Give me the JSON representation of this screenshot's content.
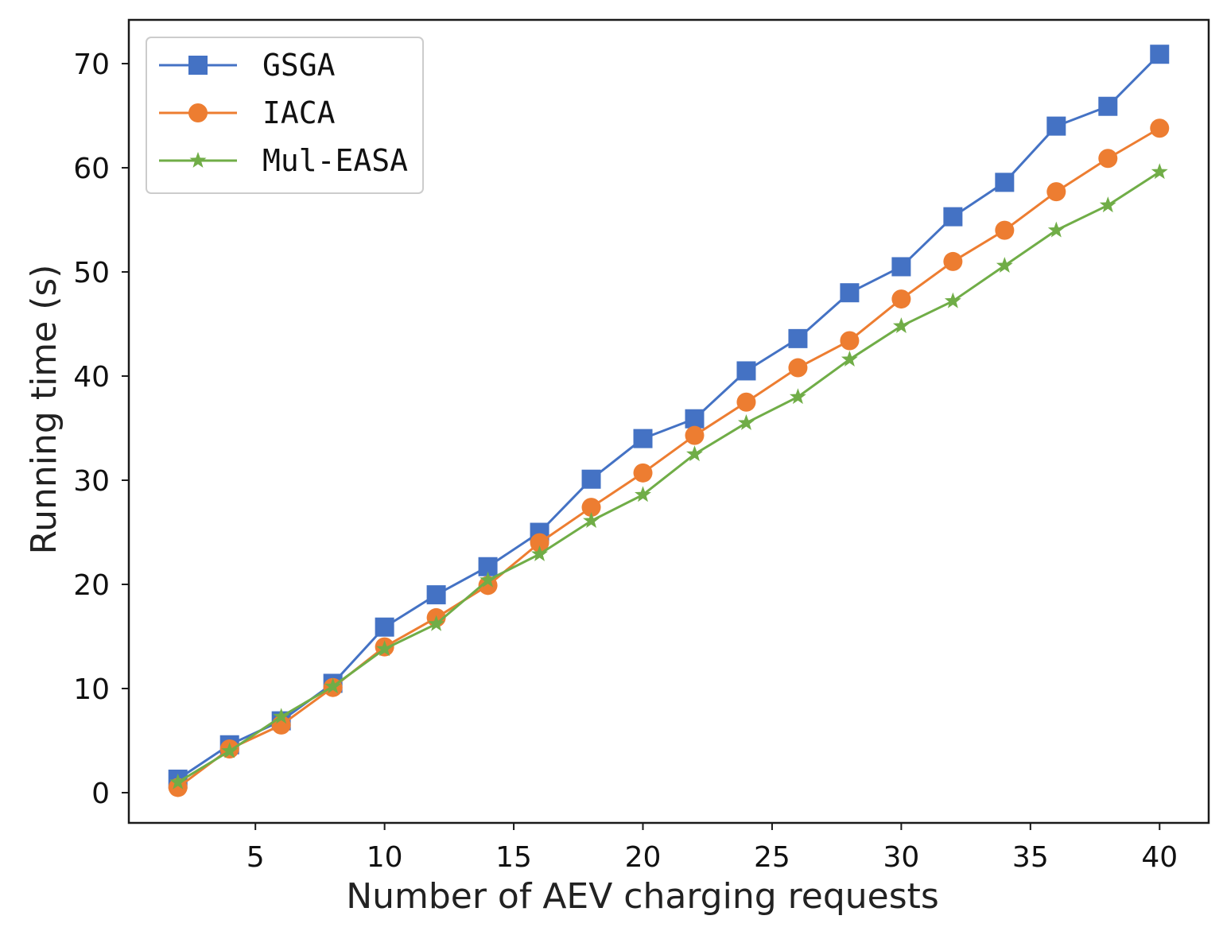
{
  "chart_data": {
    "type": "line",
    "title": "",
    "xlabel": "Number of AEV charging requests",
    "ylabel": "Running time (s)",
    "xlim": [
      0.1,
      41.9
    ],
    "ylim": [
      -2.9,
      74.2
    ],
    "xticks": [
      5,
      10,
      15,
      20,
      25,
      30,
      35,
      40
    ],
    "yticks": [
      0,
      10,
      20,
      30,
      40,
      50,
      60,
      70
    ],
    "grid": false,
    "legend_position": "top-left",
    "x": [
      2,
      4,
      6,
      8,
      10,
      12,
      14,
      16,
      18,
      20,
      22,
      24,
      26,
      28,
      30,
      32,
      34,
      36,
      38,
      40
    ],
    "series": [
      {
        "name": "GSGA",
        "color": "#4472c4",
        "marker": "square",
        "values": [
          1.3,
          4.6,
          6.9,
          10.5,
          15.9,
          19.0,
          21.7,
          25.0,
          30.1,
          34.0,
          35.9,
          40.5,
          43.6,
          48.0,
          50.5,
          55.3,
          58.6,
          64.0,
          65.9,
          70.9
        ]
      },
      {
        "name": "IACA",
        "color": "#ed7d31",
        "marker": "circle",
        "values": [
          0.5,
          4.2,
          6.5,
          10.1,
          14.0,
          16.8,
          19.9,
          24.0,
          27.4,
          30.7,
          34.3,
          37.5,
          40.8,
          43.4,
          47.4,
          51.0,
          54.0,
          57.7,
          60.9,
          63.8
        ]
      },
      {
        "name": "Mul-EASA",
        "color": "#70ad47",
        "marker": "star",
        "values": [
          1.0,
          4.0,
          7.3,
          10.2,
          13.8,
          16.2,
          20.4,
          22.9,
          26.1,
          28.6,
          32.5,
          35.5,
          38.0,
          41.6,
          44.8,
          47.2,
          50.6,
          54.0,
          56.4,
          59.6
        ]
      }
    ]
  }
}
